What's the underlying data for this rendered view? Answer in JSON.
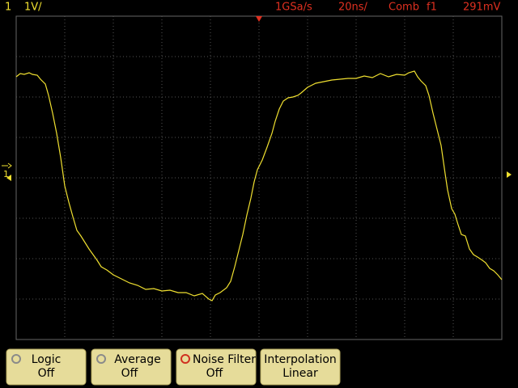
{
  "header": {
    "channel": "1",
    "scale": "1V/",
    "sample_rate": "1GSa/s",
    "timebase": "20ns/",
    "acquisition": "Comb",
    "trigger_source": "f1",
    "trigger_level": "291mV"
  },
  "markers": {
    "ground": "1"
  },
  "softkeys": [
    {
      "label": "Logic",
      "state": "Off"
    },
    {
      "label": "Average",
      "state": "Off"
    },
    {
      "label": "Noise Filter",
      "state": "Off"
    },
    {
      "label": "Interpolation",
      "state": "Linear"
    }
  ]
}
